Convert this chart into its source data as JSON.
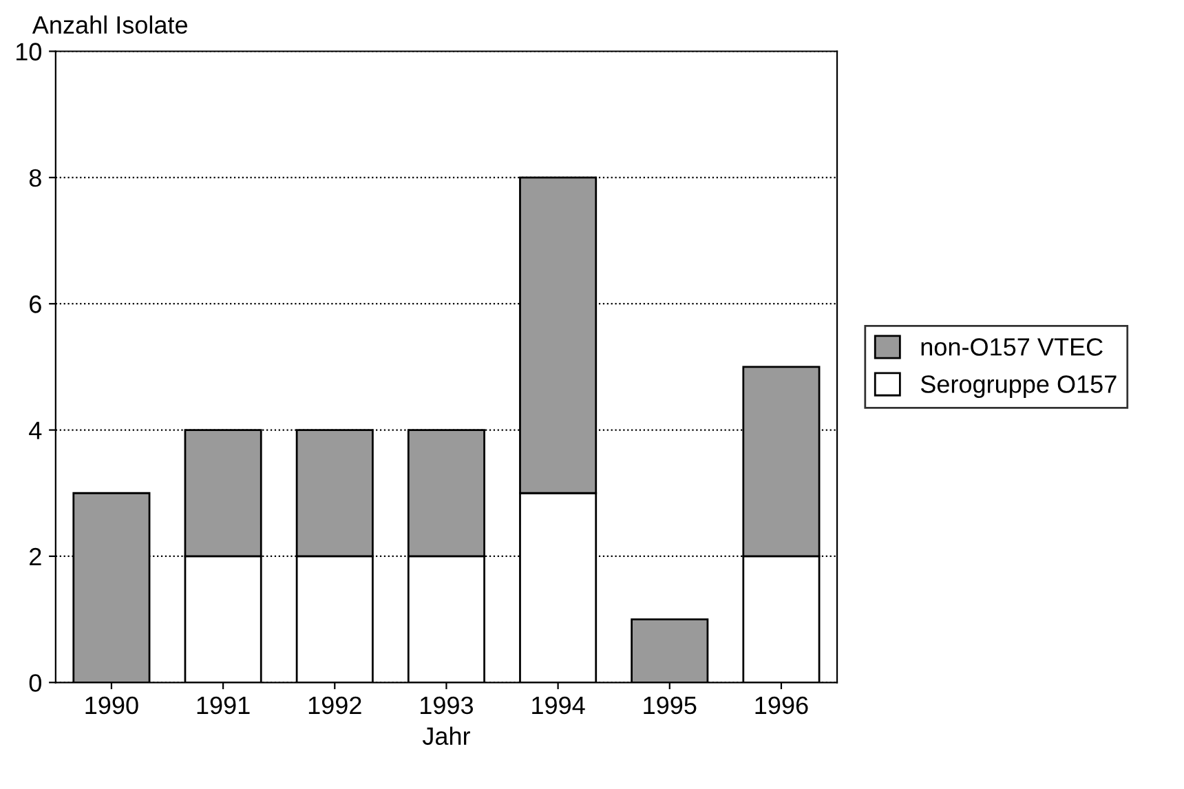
{
  "chart_data": {
    "type": "bar",
    "stacked": true,
    "ylabel": "Anzahl Isolate",
    "xlabel": "Jahr",
    "categories": [
      "1990",
      "1991",
      "1992",
      "1993",
      "1994",
      "1995",
      "1996"
    ],
    "series": [
      {
        "name": "Serogruppe O157",
        "color": "#ffffff",
        "values": [
          0,
          2,
          2,
          2,
          3,
          0,
          2
        ]
      },
      {
        "name": "non-O157 VTEC",
        "color": "#9a9a9a",
        "values": [
          3,
          2,
          2,
          2,
          5,
          1,
          3
        ]
      }
    ],
    "ylim": [
      0,
      10
    ],
    "yticks": [
      0,
      2,
      4,
      6,
      8,
      10
    ],
    "grid": "y",
    "legend": "right",
    "line_style": "dotted"
  }
}
